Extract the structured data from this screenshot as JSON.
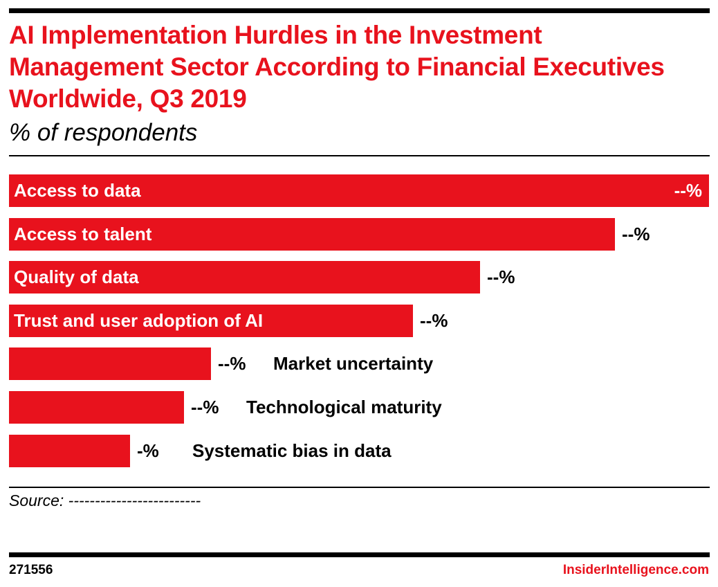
{
  "chart_data": {
    "type": "bar",
    "orientation": "horizontal",
    "title": "AI Implementation Hurdles in the Investment Management Sector According to Financial Executives Worldwide, Q3 2019",
    "subtitle": "% of respondents",
    "categories": [
      "Access to data",
      "Access to talent",
      "Quality of data",
      "Trust and user adoption of AI",
      "Market uncertainty",
      "Technological maturity",
      "Systematic bias in data"
    ],
    "values_relative_to_max": [
      1.0,
      0.866,
      0.673,
      0.577,
      0.289,
      0.25,
      0.173
    ],
    "value_labels": [
      "--%",
      "--%",
      "--%",
      "--%",
      "--%",
      "--%",
      "-%"
    ],
    "bar_color": "#e8121d",
    "grid": false,
    "source": "Source: -------------------------"
  },
  "footer": {
    "chart_id": "271556",
    "brand": "InsiderIntelligence.com",
    "brand_color": "#e8121d"
  }
}
